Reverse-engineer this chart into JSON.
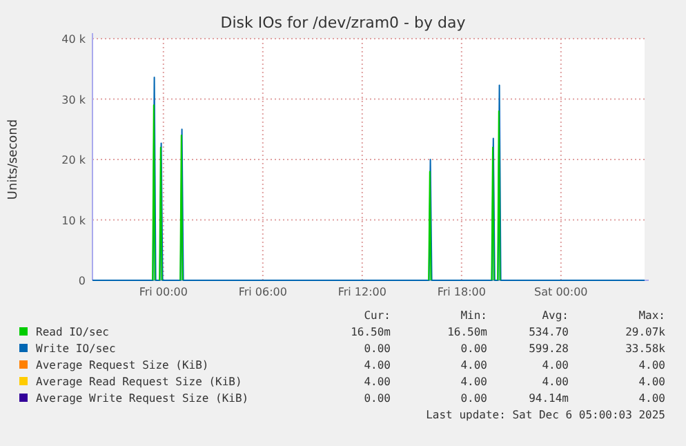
{
  "chart_data": {
    "type": "line",
    "title": "Disk IOs for /dev/zram0 - by day",
    "ylabel": "Units/second",
    "xlim": [
      "2025-12-04T19:43",
      "2025-12-06T05:03"
    ],
    "xticks": [
      {
        "value": "2025-12-05T00:00",
        "label": "Fri 00:00"
      },
      {
        "value": "2025-12-05T06:00",
        "label": "Fri 06:00"
      },
      {
        "value": "2025-12-05T12:00",
        "label": "Fri 12:00"
      },
      {
        "value": "2025-12-05T18:00",
        "label": "Fri 18:00"
      },
      {
        "value": "2025-12-06T00:00",
        "label": "Sat 00:00"
      }
    ],
    "ylim": [
      0,
      40000
    ],
    "yticks": [
      0,
      {
        "value": 10000,
        "label": "10 k"
      },
      {
        "value": 20000,
        "label": "20 k"
      },
      {
        "value": 30000,
        "label": "30 k"
      },
      {
        "value": 40000,
        "label": "40 k"
      }
    ],
    "grid": true,
    "legend": "bottom",
    "line_style": "solid",
    "marker": "none",
    "series": [
      {
        "name": "Read IO/sec",
        "color": "#00cc00",
        "x": [
          "2025-12-04T23:21",
          "2025-12-04T23:25",
          "2025-12-04T23:29",
          "2025-12-04T23:38",
          "2025-12-04T23:46",
          "2025-12-04T23:50",
          "2025-12-04T23:54",
          "2025-12-05T00:30",
          "2025-12-05T01:01",
          "2025-12-05T01:05",
          "2025-12-05T01:09",
          "2025-12-05T10:00",
          "2025-12-05T16:01",
          "2025-12-05T16:05",
          "2025-12-05T16:09",
          "2025-12-05T18:00",
          "2025-12-05T19:49",
          "2025-12-05T19:53",
          "2025-12-05T19:57",
          "2025-12-05T20:04",
          "2025-12-05T20:11",
          "2025-12-05T20:15",
          "2025-12-05T20:19"
        ],
        "values": [
          0,
          29000,
          0,
          null,
          0,
          22000,
          0,
          null,
          0,
          24000,
          0,
          null,
          0,
          18000,
          0,
          null,
          0,
          22000,
          0,
          null,
          0,
          28000,
          0
        ]
      },
      {
        "name": "Write IO/sec",
        "color": "#0066b3",
        "x": [
          "2025-12-04T19:43",
          "2025-12-04T23:22",
          "2025-12-04T23:27",
          "2025-12-04T23:32",
          "2025-12-04T23:47",
          "2025-12-04T23:52",
          "2025-12-04T23:57",
          "2025-12-05T01:02",
          "2025-12-05T01:07",
          "2025-12-05T01:12",
          "2025-12-05T16:02",
          "2025-12-05T16:07",
          "2025-12-05T16:12",
          "2025-12-05T19:50",
          "2025-12-05T19:55",
          "2025-12-05T20:00",
          "2025-12-05T20:12",
          "2025-12-05T20:17",
          "2025-12-05T20:22",
          "2025-12-06T05:03"
        ],
        "values": [
          0,
          0,
          33600,
          0,
          0,
          22700,
          0,
          0,
          25000,
          0,
          0,
          20000,
          0,
          0,
          23500,
          0,
          0,
          32300,
          0,
          0
        ]
      },
      {
        "name": "Average Request Size (KiB)",
        "color": "#ff8000",
        "values": [
          null
        ]
      },
      {
        "name": "Average Read Request Size (KiB)",
        "color": "#ffcc00",
        "values": [
          null
        ]
      },
      {
        "name": "Average Write Request Size (KiB)",
        "color": "#330099",
        "values": [
          null
        ]
      }
    ],
    "annotations": [
      "Cur:",
      "Min:",
      "Avg:",
      "Max:",
      "16.50m",
      "16.50m",
      "534.70",
      "29.07k",
      "0.00",
      "0.00",
      "599.28",
      "33.58k",
      "4.00",
      "4.00",
      "4.00",
      "4.00",
      "4.00",
      "4.00",
      "4.00",
      "4.00",
      "0.00",
      "0.00",
      "94.14m",
      "4.00",
      "Last update: Sat Dec  6 05:00:03 2025"
    ]
  }
}
